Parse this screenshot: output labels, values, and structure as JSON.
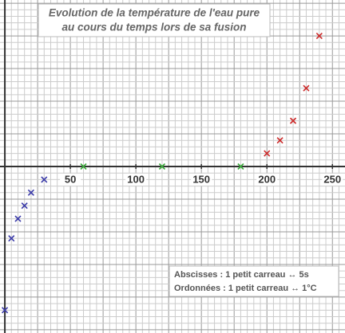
{
  "chart_data": {
    "type": "scatter",
    "title": [
      "Evolution de la température de l'eau pure",
      "au cours du temps lors de sa fusion"
    ],
    "annotations": [
      "Abscisses  : 1 petit carreau ↔ 5s",
      "Ordonnées : 1 petit carreau ↔ 1°C"
    ],
    "xlim": [
      -3.7,
      259.6
    ],
    "ylim": [
      -25.5,
      25.5
    ],
    "xticks": [
      50,
      100,
      150,
      200,
      250
    ],
    "grid": true,
    "x_grid_step": 5,
    "y_grid_step": 1,
    "x_major_step": 25,
    "y_major_step": 5,
    "series": [
      {
        "color": "#3a3aa8",
        "x": [
          0,
          5,
          10,
          15,
          20,
          30
        ],
        "values": [
          -22,
          -11,
          -8,
          -6,
          -4,
          -2
        ]
      },
      {
        "color": "#3aa83a",
        "x": [
          60,
          120,
          180
        ],
        "values": [
          0,
          0,
          0
        ]
      },
      {
        "color": "#cc2a2a",
        "x": [
          200,
          210,
          220,
          230,
          240
        ],
        "values": [
          2,
          4,
          7,
          12,
          20
        ]
      }
    ]
  }
}
